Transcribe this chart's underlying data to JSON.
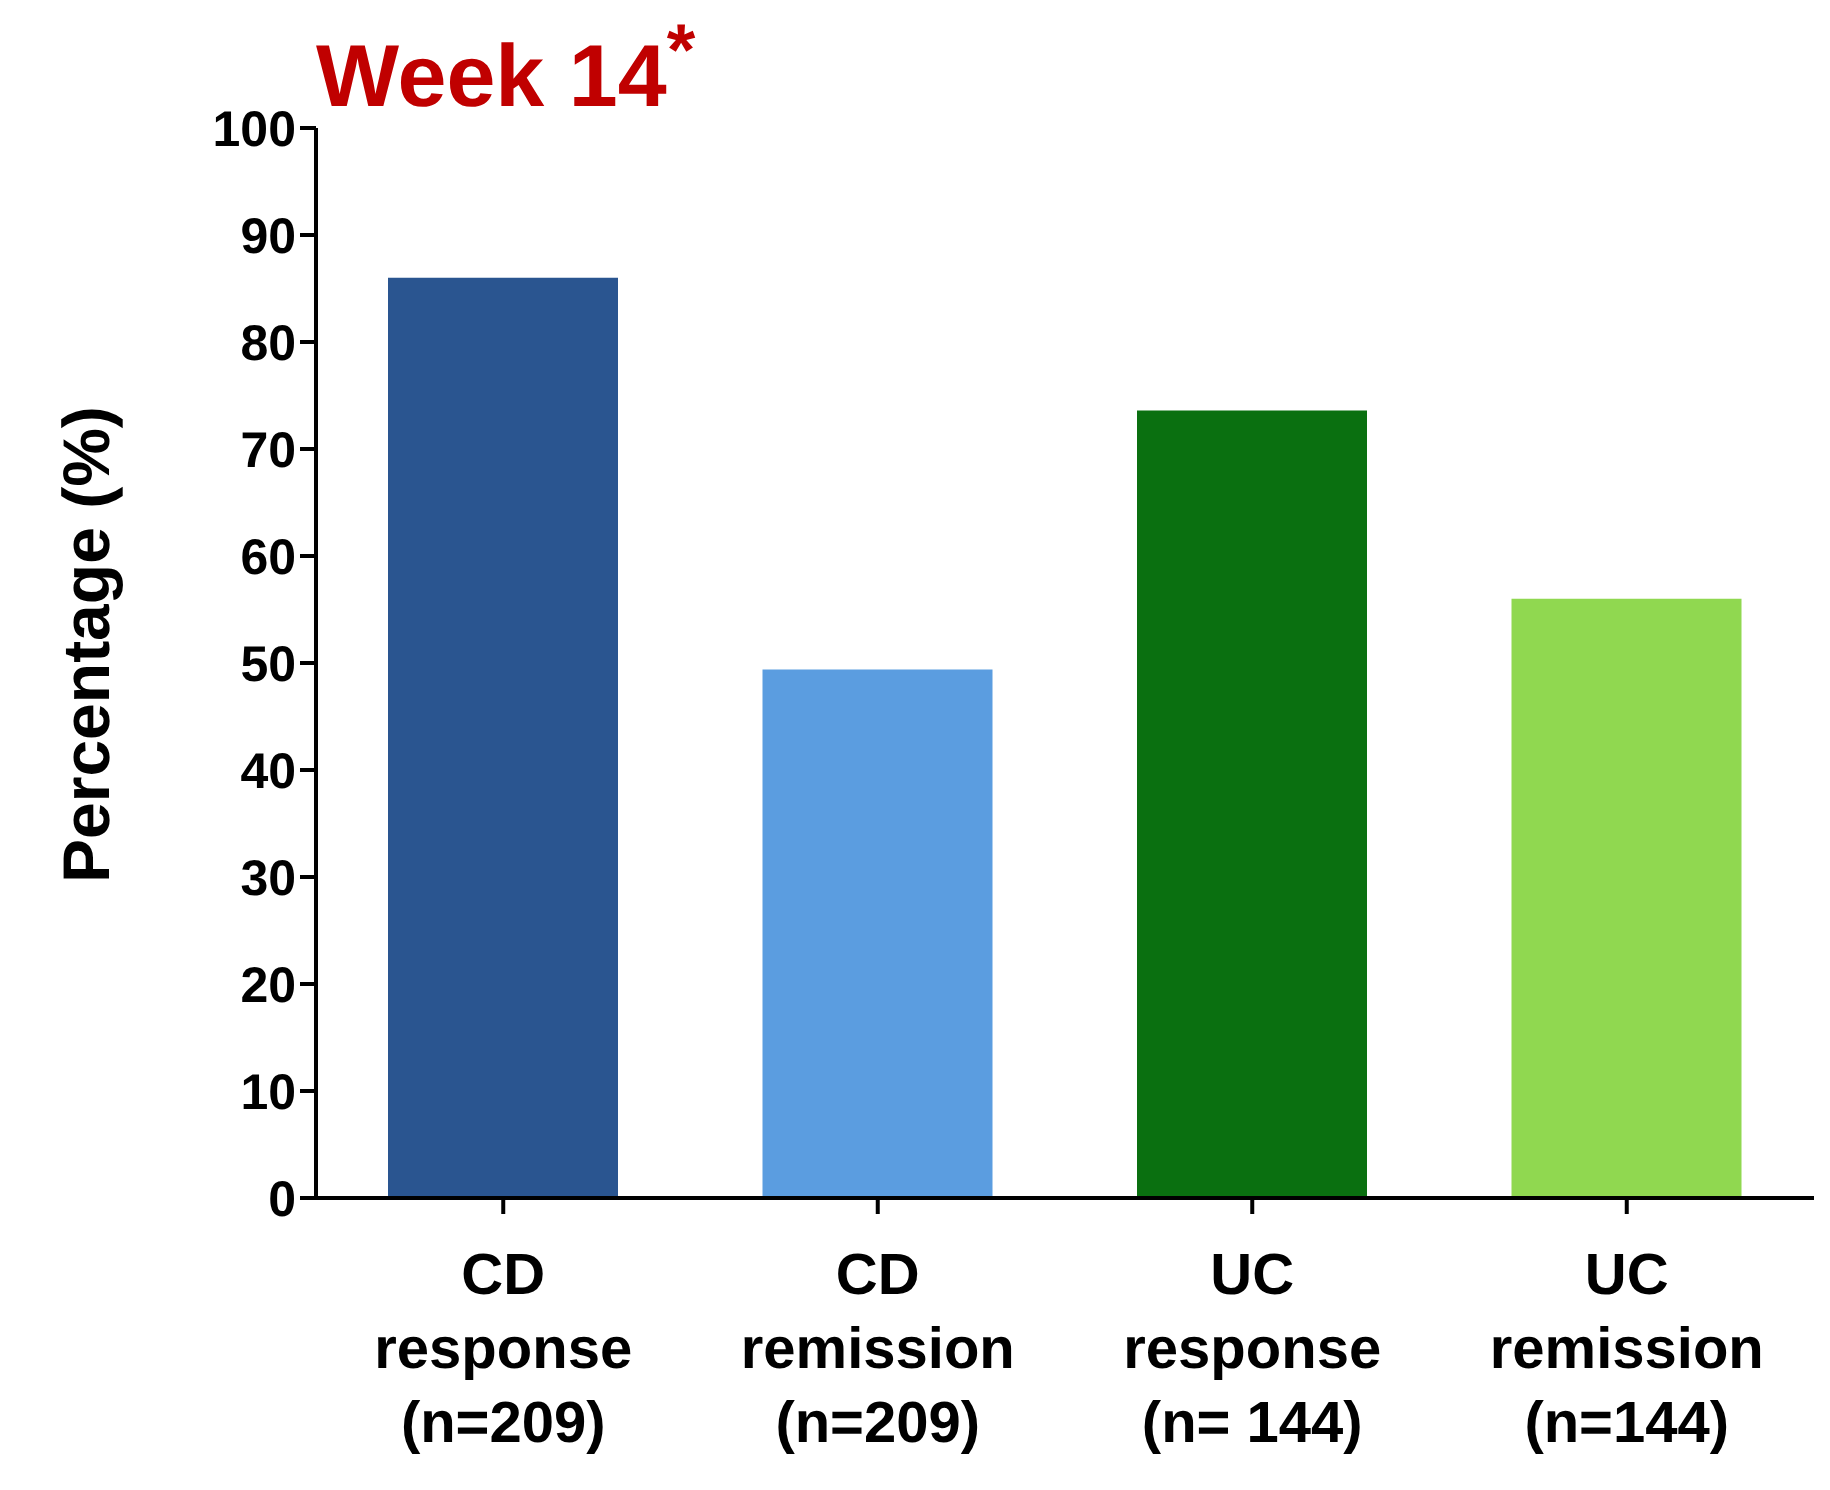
{
  "chart_data": {
    "type": "bar",
    "title": "Week 14$^{*}$",
    "ylabel": "Percentage (%)",
    "categories": [
      "CD\nresponse\n(n=209)",
      "CD\nremission\n(n=209)",
      "UC\nresponse\n(n= 144)",
      "UC\nremission\n(n=144)"
    ],
    "values": [
      86,
      49.4,
      73.6,
      56
    ],
    "colors": [
      "#2a5590",
      "#5b9de0",
      "#0a7010",
      "#90d850"
    ],
    "ylim": [
      0,
      100
    ],
    "yticks": [
      0,
      10,
      20,
      30,
      40,
      50,
      60,
      70,
      80,
      90,
      100
    ],
    "grid": false,
    "legend": false
  }
}
